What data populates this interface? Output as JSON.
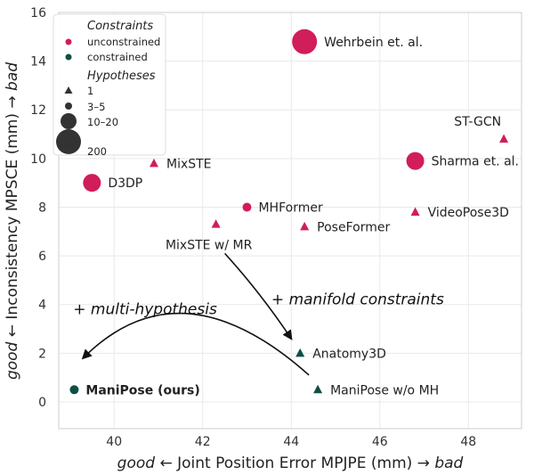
{
  "colors": {
    "unconstrained": "#d11d5a",
    "constrained": "#0e4f44",
    "legend_marker": "#333333",
    "grid": "#e9e9e9",
    "frame": "#cccccc"
  },
  "chart_data": {
    "type": "scatter",
    "xlabel": {
      "left": "good",
      "middle": "Joint Position Error MPJPE (mm)",
      "right": "bad"
    },
    "ylabel": {
      "left": "good",
      "middle": "Inconsistency MPSCE (mm)",
      "right": "bad"
    },
    "xlim": [
      38.75,
      49.2
    ],
    "ylim": [
      -1.1,
      16
    ],
    "xticks": [
      "40",
      "42",
      "44",
      "46",
      "48"
    ],
    "yticks": [
      "0",
      "2",
      "4",
      "6",
      "8",
      "10",
      "12",
      "14",
      "16"
    ],
    "grid": true,
    "legend": {
      "placement": "top-left",
      "constraints_title": "Constraints",
      "constraints": [
        {
          "label": "unconstrained",
          "key": "unconstrained"
        },
        {
          "label": "constrained",
          "key": "constrained"
        }
      ],
      "hypotheses_title": "Hypotheses",
      "hypotheses": [
        {
          "label": "1",
          "marker": "triangle",
          "size": "1"
        },
        {
          "label": "3–5",
          "marker": "circle",
          "size": "3-5"
        },
        {
          "label": "10–20",
          "marker": "circle",
          "size": "10-20"
        },
        {
          "label": "200",
          "marker": "circle",
          "size": "200"
        }
      ]
    },
    "points": [
      {
        "name": "Wehrbein et. al.",
        "x": 44.3,
        "y": 14.8,
        "constraint": "unconstrained",
        "hypotheses": "200",
        "label_side": "right"
      },
      {
        "name": "ST-GCN",
        "x": 48.8,
        "y": 10.8,
        "constraint": "unconstrained",
        "hypotheses": "1",
        "label_side": "above-left"
      },
      {
        "name": "Sharma et. al.",
        "x": 46.8,
        "y": 9.9,
        "constraint": "unconstrained",
        "hypotheses": "10-20",
        "label_side": "right"
      },
      {
        "name": "MixSTE",
        "x": 40.9,
        "y": 9.8,
        "constraint": "unconstrained",
        "hypotheses": "1",
        "label_side": "right"
      },
      {
        "name": "D3DP",
        "x": 39.5,
        "y": 9.0,
        "constraint": "unconstrained",
        "hypotheses": "10-20",
        "label_side": "right"
      },
      {
        "name": "MHFormer",
        "x": 43.0,
        "y": 8.0,
        "constraint": "unconstrained",
        "hypotheses": "3-5",
        "label_side": "right"
      },
      {
        "name": "VideoPose3D",
        "x": 46.8,
        "y": 7.8,
        "constraint": "unconstrained",
        "hypotheses": "1",
        "label_side": "right"
      },
      {
        "name": "MixSTE w/ MR",
        "x": 42.3,
        "y": 7.3,
        "constraint": "unconstrained",
        "hypotheses": "1",
        "label_side": "below"
      },
      {
        "name": "PoseFormer",
        "x": 44.3,
        "y": 7.2,
        "constraint": "unconstrained",
        "hypotheses": "1",
        "label_side": "right"
      },
      {
        "name": "Anatomy3D",
        "x": 44.2,
        "y": 2.0,
        "constraint": "constrained",
        "hypotheses": "1",
        "label_side": "right"
      },
      {
        "name": "ManiPose w/o MH",
        "x": 44.6,
        "y": 0.5,
        "constraint": "constrained",
        "hypotheses": "1",
        "label_side": "right"
      },
      {
        "name": "ManiPose (ours)",
        "x": 39.1,
        "y": 0.5,
        "constraint": "constrained",
        "hypotheses": "3-5",
        "label_side": "right",
        "bold": true
      }
    ],
    "annotations": [
      {
        "text": "+ manifold constraints",
        "x": 45.5,
        "y": 4.0
      },
      {
        "text": "+ multi-hypothesis",
        "x": 40.7,
        "y": 3.6
      }
    ],
    "arrows": [
      {
        "from": [
          42.5,
          6.1
        ],
        "ctrl": [
          43.3,
          4.5
        ],
        "to": [
          44.0,
          2.6
        ]
      },
      {
        "from": [
          44.4,
          1.1
        ],
        "ctrl": [
          41.5,
          5.8
        ],
        "to": [
          39.3,
          1.8
        ]
      }
    ]
  }
}
